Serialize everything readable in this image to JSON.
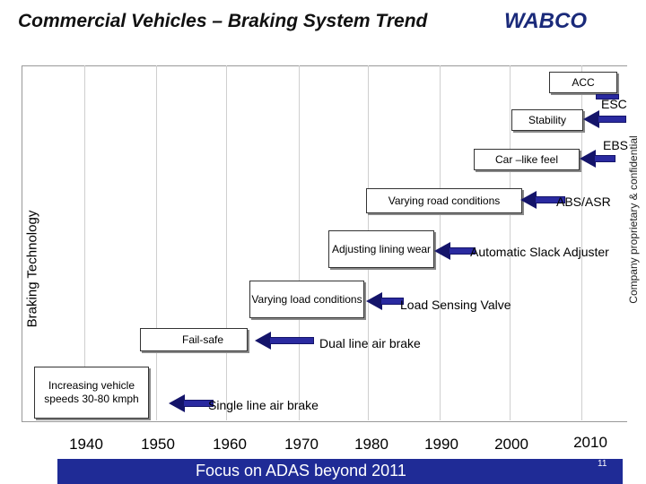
{
  "header": {
    "title": "Commercial Vehicles – Braking System Trend",
    "logo": "WABCO"
  },
  "y_axis_label": "Braking Technology",
  "side_note": "Company proprietary & confidential",
  "x_axis": {
    "ticks": [
      "1940",
      "1950",
      "1960",
      "1970",
      "1980",
      "1990",
      "2000",
      "2010"
    ]
  },
  "drivers": [
    {
      "text": "Increasing vehicle speeds 30-80 kmph"
    },
    {
      "text": "Fail-safe"
    },
    {
      "text": "Varying load conditions"
    },
    {
      "text": "Adjusting lining wear"
    },
    {
      "text": "Varying road conditions"
    },
    {
      "text": "Car –like feel"
    },
    {
      "text": "Stability"
    },
    {
      "text": "ACC"
    }
  ],
  "technologies": [
    {
      "label": "Single line air brake"
    },
    {
      "label": "Dual line air brake"
    },
    {
      "label": "Load Sensing Valve"
    },
    {
      "label": "Automatic Slack Adjuster"
    },
    {
      "label": "ABS/ASR"
    },
    {
      "label": "EBS"
    },
    {
      "label": "ESC"
    }
  ],
  "footer": {
    "banner": "Focus on ADAS beyond 2011",
    "page_number": "11"
  },
  "colors": {
    "arrow": "#2a2aa0",
    "banner": "#1f2b96",
    "logo": "#1a2a7a"
  }
}
